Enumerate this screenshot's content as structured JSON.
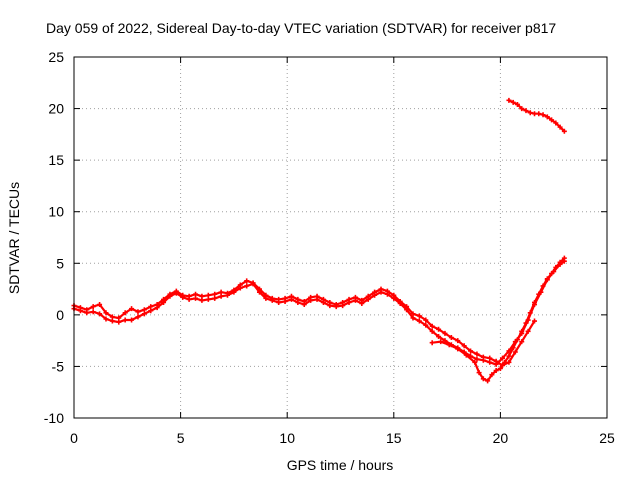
{
  "chart_data": {
    "type": "line",
    "title": "Day 059 of 2022, Sidereal Day-to-day VTEC variation (SDTVAR) for receiver p817",
    "xlabel": "GPS time / hours",
    "ylabel": "SDTVAR / TECUs",
    "xlim": [
      0,
      25
    ],
    "ylim": [
      -10,
      25
    ],
    "xticks": [
      0,
      5,
      10,
      15,
      20,
      25
    ],
    "yticks": [
      -10,
      -5,
      0,
      5,
      10,
      15,
      20,
      25
    ],
    "grid": true,
    "series": [
      {
        "name": "track-1",
        "color": "#ff0000",
        "x": [
          0.0,
          0.3,
          0.6,
          0.9,
          1.2,
          1.5,
          1.8,
          2.1,
          2.4,
          2.7,
          3.0,
          3.3,
          3.6,
          3.9,
          4.2,
          4.5,
          4.8,
          5.1,
          5.4,
          5.7,
          6.0,
          6.3,
          6.6,
          6.9,
          7.2,
          7.5,
          7.8,
          8.1,
          8.4,
          8.7,
          9.0,
          9.3,
          9.6,
          9.9,
          10.2,
          10.5,
          10.8,
          11.1,
          11.4,
          11.7,
          12.0,
          12.3,
          12.6,
          12.9,
          13.2,
          13.5,
          13.8,
          14.1,
          14.4,
          14.7,
          15.0,
          15.3,
          15.6,
          15.9,
          16.2,
          16.5,
          16.8,
          17.1,
          17.4,
          17.7,
          18.0,
          18.3,
          18.6,
          18.9,
          19.2,
          19.5,
          19.8,
          20.1,
          20.4,
          20.7,
          21.0,
          21.3,
          21.6,
          21.9,
          22.2,
          22.5,
          22.8,
          23.0
        ],
        "y": [
          0.6,
          0.4,
          0.2,
          0.3,
          0.1,
          -0.4,
          -0.6,
          -0.7,
          -0.5,
          -0.5,
          -0.2,
          0.1,
          0.4,
          0.7,
          1.2,
          1.8,
          2.1,
          1.7,
          1.5,
          1.6,
          1.4,
          1.5,
          1.6,
          1.8,
          1.9,
          2.2,
          2.6,
          2.8,
          3.0,
          2.2,
          1.6,
          1.4,
          1.2,
          1.3,
          1.5,
          1.2,
          1.0,
          1.4,
          1.5,
          1.2,
          0.9,
          0.8,
          0.9,
          1.2,
          1.4,
          1.1,
          1.5,
          1.9,
          2.2,
          2.0,
          1.6,
          1.1,
          0.5,
          -0.3,
          -0.6,
          -1.0,
          -1.6,
          -2.1,
          -2.5,
          -2.9,
          -3.2,
          -3.6,
          -4.0,
          -4.3,
          -4.4,
          -4.6,
          -4.8,
          -4.2,
          -3.5,
          -2.6,
          -1.8,
          -0.5,
          1.0,
          2.2,
          3.4,
          4.2,
          4.9,
          5.2
        ]
      },
      {
        "name": "track-2",
        "color": "#ff0000",
        "x": [
          0.0,
          0.3,
          0.6,
          0.9,
          1.2,
          1.5,
          1.8,
          2.1,
          2.4,
          2.7,
          3.0,
          3.3,
          3.6,
          3.9,
          4.2,
          4.5,
          4.8,
          5.1,
          5.4,
          5.7,
          6.0,
          6.3,
          6.6,
          6.9,
          7.2,
          7.5,
          7.8,
          8.1,
          8.4,
          8.7,
          9.0,
          9.3,
          9.6,
          9.9,
          10.2,
          10.5,
          10.8,
          11.1,
          11.4,
          11.7,
          12.0,
          12.3,
          12.6,
          12.9,
          13.2,
          13.5,
          13.8,
          14.1,
          14.4,
          14.7,
          15.0,
          15.3,
          15.6,
          15.9,
          16.2,
          16.5,
          16.8,
          17.1,
          17.4,
          17.7,
          18.0,
          18.3,
          18.6,
          18.9,
          19.2,
          19.5,
          19.8,
          20.1,
          20.4,
          20.7,
          21.0,
          21.3,
          21.6
        ],
        "y": [
          0.9,
          0.7,
          0.5,
          0.8,
          1.0,
          0.2,
          -0.2,
          -0.3,
          0.2,
          0.6,
          0.3,
          0.5,
          0.8,
          1.0,
          1.5,
          2.0,
          2.3,
          1.9,
          1.8,
          2.0,
          1.8,
          1.9,
          2.0,
          2.2,
          2.1,
          2.4,
          2.9,
          3.3,
          3.1,
          2.5,
          1.9,
          1.6,
          1.5,
          1.6,
          1.8,
          1.5,
          1.3,
          1.7,
          1.8,
          1.5,
          1.2,
          1.0,
          1.2,
          1.5,
          1.7,
          1.4,
          1.8,
          2.2,
          2.5,
          2.3,
          1.9,
          1.3,
          0.8,
          0.1,
          -0.1,
          -0.5,
          -1.1,
          -1.4,
          -1.8,
          -2.2,
          -2.5,
          -3.0,
          -3.5,
          -3.8,
          -4.1,
          -4.2,
          -4.5,
          -4.9,
          -4.6,
          -3.6,
          -2.6,
          -1.6,
          -0.6
        ]
      },
      {
        "name": "track-3",
        "color": "#ff0000",
        "x": [
          16.8,
          17.2,
          17.6,
          18.0,
          18.4,
          18.8,
          19.0,
          19.2,
          19.4,
          19.6,
          19.8,
          20.0,
          20.2,
          20.4,
          20.6,
          20.8,
          21.0,
          21.2,
          21.4,
          21.6,
          21.8,
          22.0,
          22.2,
          22.4,
          22.6,
          22.8,
          23.0
        ],
        "y": [
          -2.7,
          -2.6,
          -2.9,
          -3.3,
          -3.9,
          -4.6,
          -5.6,
          -6.2,
          -6.4,
          -5.8,
          -5.4,
          -5.2,
          -4.6,
          -4.0,
          -3.2,
          -2.4,
          -1.6,
          -0.8,
          0.2,
          1.2,
          2.0,
          2.8,
          3.5,
          4.0,
          4.6,
          5.1,
          5.5
        ]
      },
      {
        "name": "track-4",
        "color": "#ff0000",
        "x": [
          20.4,
          20.6,
          20.8,
          21.0,
          21.2,
          21.4,
          21.6,
          21.8,
          22.0,
          22.2,
          22.4,
          22.6,
          22.8,
          23.0
        ],
        "y": [
          20.8,
          20.6,
          20.4,
          20.0,
          19.8,
          19.6,
          19.5,
          19.5,
          19.4,
          19.2,
          18.9,
          18.6,
          18.2,
          17.8
        ]
      }
    ]
  }
}
